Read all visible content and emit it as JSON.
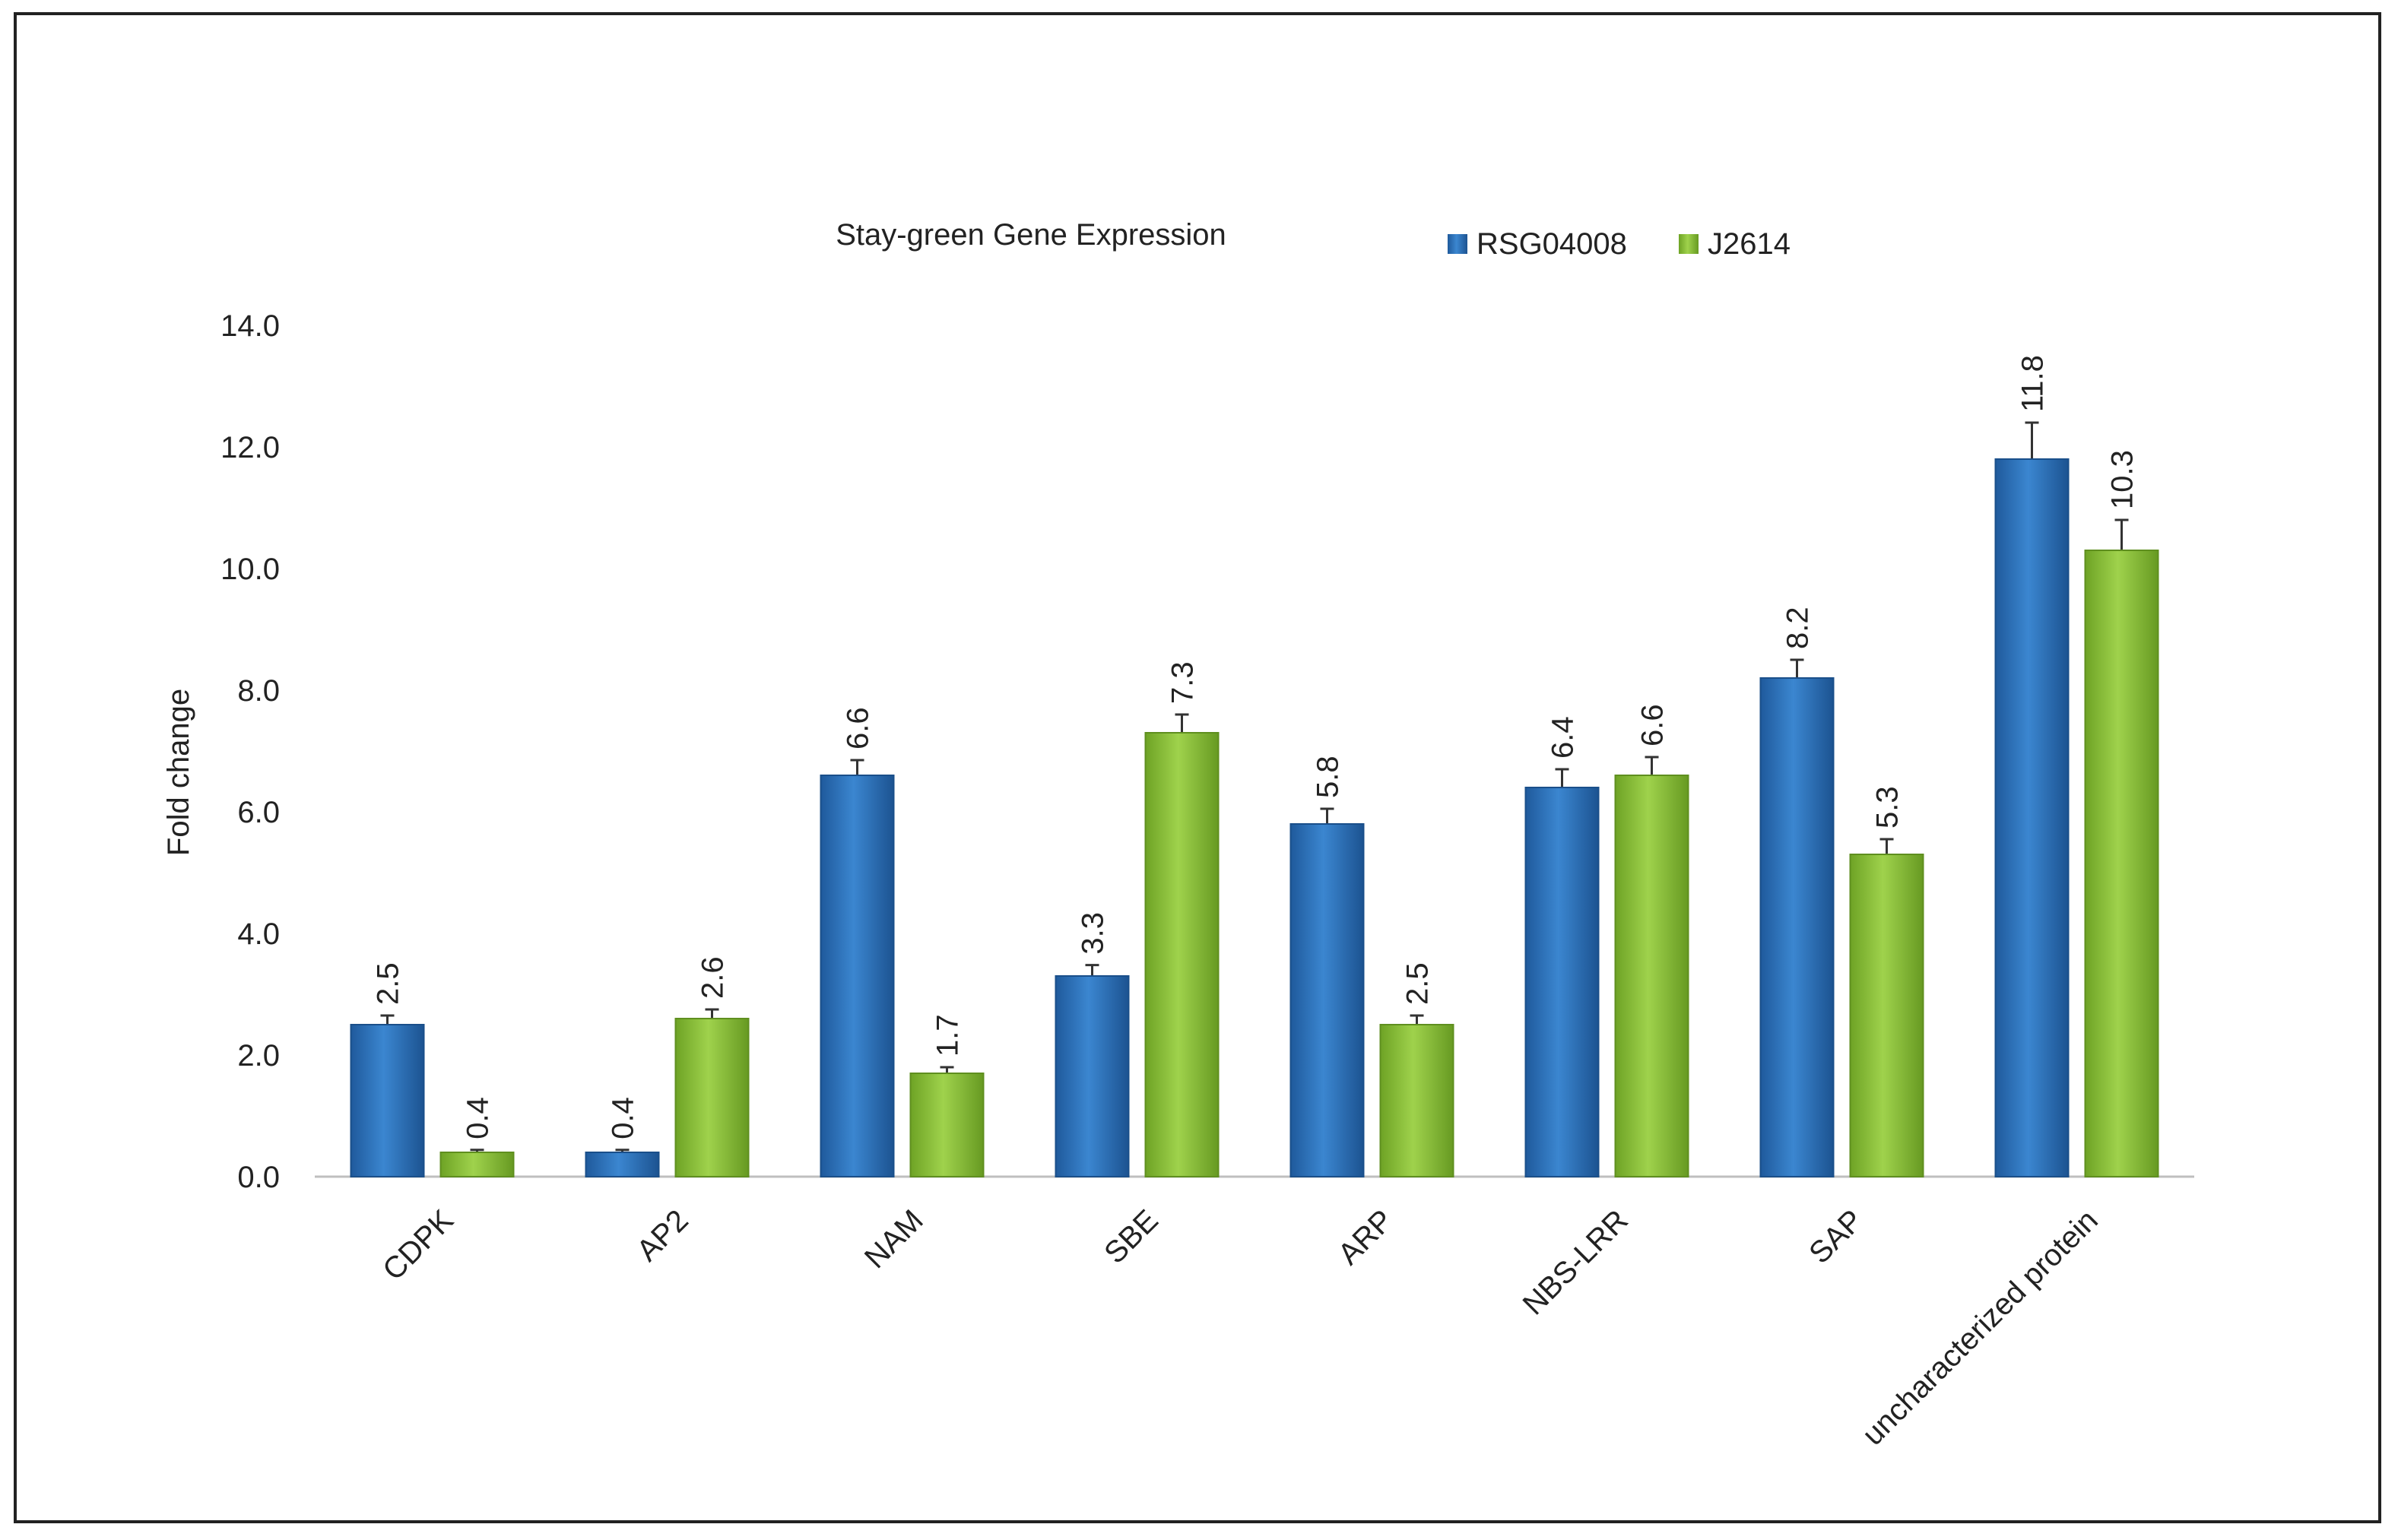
{
  "chart_data": {
    "type": "bar",
    "title": "Stay-green Gene Expression",
    "xlabel": "",
    "ylabel": "Fold change",
    "ylim": [
      0,
      14
    ],
    "yticks": [
      "0.0",
      "2.0",
      "4.0",
      "6.0",
      "8.0",
      "10.0",
      "12.0",
      "14.0"
    ],
    "grid": false,
    "legend_position": "top-center",
    "categories": [
      "CDPK",
      "AP2",
      "NAM",
      "SBE",
      "ARP",
      "NBS-LRR",
      "SAP",
      "uncharacterized protein"
    ],
    "series": [
      {
        "name": "RSG04008",
        "color": "#2f74bd",
        "values": [
          2.5,
          0.4,
          6.6,
          3.3,
          5.8,
          6.4,
          8.2,
          11.8
        ],
        "labels": [
          "2.5",
          "0.4",
          "6.6",
          "3.3",
          "5.8",
          "6.4",
          "8.2",
          "11.8"
        ],
        "errors": [
          0.15,
          0.04,
          0.25,
          0.18,
          0.25,
          0.3,
          0.3,
          0.6
        ]
      },
      {
        "name": "J2614",
        "color": "#86bf35",
        "values": [
          0.4,
          2.6,
          1.7,
          7.3,
          2.5,
          6.6,
          5.3,
          10.3
        ],
        "labels": [
          "0.4",
          "2.6",
          "1.7",
          "7.3",
          "2.5",
          "6.6",
          "5.3",
          "10.3"
        ],
        "errors": [
          0.04,
          0.15,
          0.1,
          0.3,
          0.15,
          0.3,
          0.25,
          0.5
        ]
      }
    ]
  }
}
